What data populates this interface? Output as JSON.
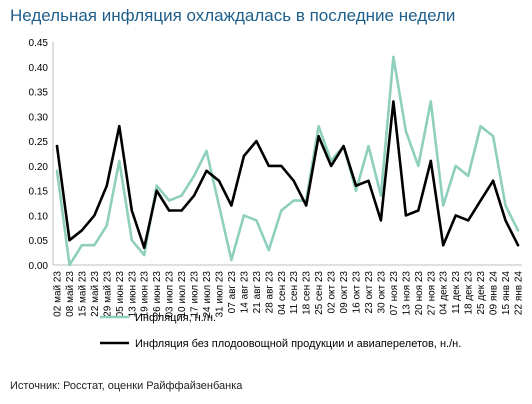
{
  "title": "Недельная инфляция охлаждалась в последние недели",
  "source": "Источник: Росстат, оценки Райффайзенбанка",
  "chart_data": {
    "type": "line",
    "categories": [
      "02 май 23",
      "08 май 23",
      "15 май 23",
      "22 май 23",
      "29 май 23",
      "05 июн 23",
      "13 июн 23",
      "19 июн 23",
      "26 июн 23",
      "03 июл 23",
      "10 июл 23",
      "17 июл 23",
      "24 июл 23",
      "31 июл 23",
      "07 авг 23",
      "14 авг 23",
      "21 авг 23",
      "28 авг 23",
      "04 сен 23",
      "11 сен 23",
      "18 сен 23",
      "25 сен 23",
      "02 окт 23",
      "09 окт 23",
      "16 окт 23",
      "23 окт 23",
      "30 окт 23",
      "07 ноя 23",
      "13 ноя 23",
      "20 ноя 23",
      "27 ноя 23",
      "04 дек 23",
      "11 дек 23",
      "18 дек 23",
      "25 дек 23",
      "09 янв 24",
      "15 янв 24",
      "22 янв 24"
    ],
    "series": [
      {
        "name": "Инфляция, н./н.",
        "color": "#8fcfbd",
        "values": [
          0.19,
          0.0,
          0.04,
          0.04,
          0.08,
          0.21,
          0.05,
          0.02,
          0.16,
          0.13,
          0.14,
          0.18,
          0.23,
          0.12,
          0.01,
          0.1,
          0.09,
          0.03,
          0.11,
          0.13,
          0.13,
          0.28,
          0.21,
          0.24,
          0.15,
          0.24,
          0.14,
          0.42,
          0.27,
          0.2,
          0.33,
          0.12,
          0.2,
          0.18,
          0.28,
          0.26,
          0.12,
          0.07
        ]
      },
      {
        "name": "Инфляция без плодоовощной продукции и авиаперелетов, н./н.",
        "color": "#000000",
        "values": [
          0.24,
          0.05,
          0.07,
          0.1,
          0.16,
          0.28,
          0.11,
          0.035,
          0.15,
          0.11,
          0.11,
          0.14,
          0.19,
          0.17,
          0.12,
          0.22,
          0.25,
          0.2,
          0.2,
          0.17,
          0.12,
          0.26,
          0.2,
          0.24,
          0.16,
          0.17,
          0.09,
          0.33,
          0.1,
          0.11,
          0.21,
          0.04,
          0.1,
          0.09,
          0.13,
          0.17,
          0.09,
          0.04
        ]
      }
    ],
    "ylim": [
      0,
      0.45
    ],
    "yticks": [
      "0.00",
      "0.05",
      "0.10",
      "0.15",
      "0.20",
      "0.25",
      "0.30",
      "0.35",
      "0.40",
      "0.45"
    ],
    "grid": false,
    "legend_position": "bottom"
  }
}
